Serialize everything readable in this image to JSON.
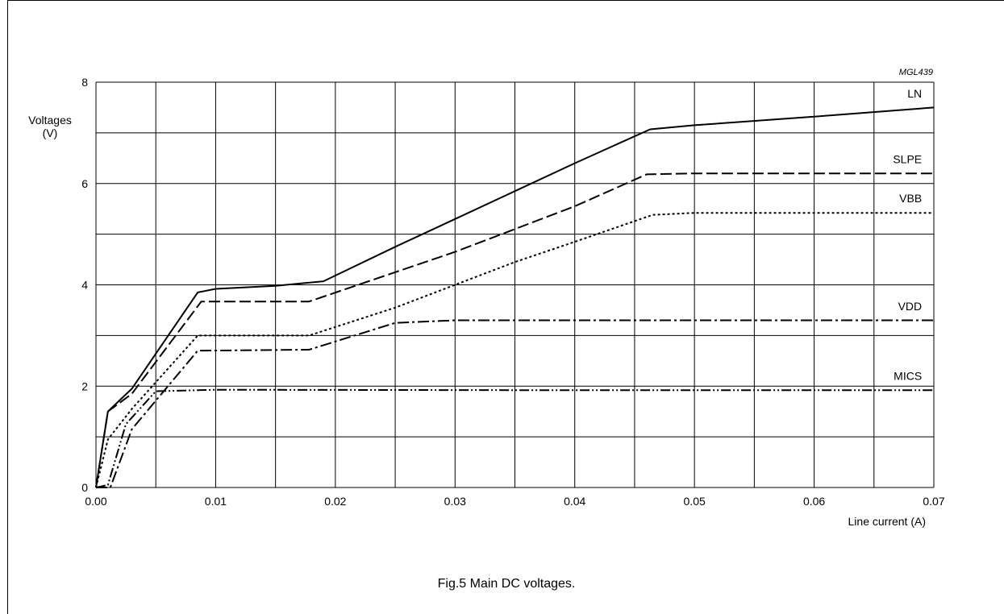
{
  "figure": {
    "code": "MGL439",
    "caption": "Fig.5  Main DC voltages."
  },
  "chart_data": {
    "type": "line",
    "title": "",
    "xlabel": "Line current (A)",
    "ylabel": [
      "Voltages",
      "(V)"
    ],
    "xlim": [
      0,
      0.07
    ],
    "ylim": [
      0,
      8
    ],
    "grid": true,
    "x_ticks": [
      0.0,
      0.01,
      0.02,
      0.03,
      0.04,
      0.05,
      0.06,
      0.07
    ],
    "x_tick_labels": [
      "0.00",
      "0.01",
      "0.02",
      "0.03",
      "0.04",
      "0.05",
      "0.06",
      "0.07"
    ],
    "x_minor_grid": [
      0.005,
      0.015,
      0.025,
      0.035,
      0.045,
      0.055,
      0.065
    ],
    "y_ticks": [
      0,
      2,
      4,
      6,
      8
    ],
    "y_tick_labels": [
      "0",
      "2",
      "4",
      "6",
      "8"
    ],
    "y_minor_grid": [
      1,
      3,
      5,
      7
    ],
    "series": [
      {
        "name": "LN",
        "dash": "solid",
        "points": [
          [
            0.0,
            0.0
          ],
          [
            0.001,
            1.5
          ],
          [
            0.003,
            1.95
          ],
          [
            0.0085,
            3.85
          ],
          [
            0.01,
            3.92
          ],
          [
            0.015,
            3.98
          ],
          [
            0.019,
            4.07
          ],
          [
            0.025,
            4.75
          ],
          [
            0.03,
            5.3
          ],
          [
            0.035,
            5.85
          ],
          [
            0.04,
            6.4
          ],
          [
            0.0463,
            7.07
          ],
          [
            0.05,
            7.15
          ],
          [
            0.06,
            7.32
          ],
          [
            0.07,
            7.5
          ]
        ],
        "label_at": [
          0.069,
          7.7
        ]
      },
      {
        "name": "SLPE",
        "dash": "long-dash",
        "points": [
          [
            0.0,
            0.0
          ],
          [
            0.001,
            1.5
          ],
          [
            0.003,
            1.85
          ],
          [
            0.0088,
            3.67
          ],
          [
            0.0178,
            3.67
          ],
          [
            0.025,
            4.25
          ],
          [
            0.03,
            4.65
          ],
          [
            0.035,
            5.1
          ],
          [
            0.04,
            5.55
          ],
          [
            0.046,
            6.18
          ],
          [
            0.05,
            6.2
          ],
          [
            0.07,
            6.2
          ]
        ],
        "label_at": [
          0.069,
          6.4
        ]
      },
      {
        "name": "VBB",
        "dash": "dotted",
        "points": [
          [
            0.0,
            0.0
          ],
          [
            0.001,
            0.95
          ],
          [
            0.003,
            1.55
          ],
          [
            0.0085,
            3.0
          ],
          [
            0.0178,
            3.0
          ],
          [
            0.025,
            3.55
          ],
          [
            0.03,
            4.0
          ],
          [
            0.035,
            4.45
          ],
          [
            0.04,
            4.85
          ],
          [
            0.0465,
            5.38
          ],
          [
            0.05,
            5.42
          ],
          [
            0.07,
            5.42
          ]
        ],
        "label_at": [
          0.069,
          5.63
        ]
      },
      {
        "name": "VDD",
        "dash": "dash-dot",
        "points": [
          [
            0.0,
            0.0
          ],
          [
            0.0012,
            0.0
          ],
          [
            0.003,
            1.15
          ],
          [
            0.0085,
            2.7
          ],
          [
            0.0178,
            2.72
          ],
          [
            0.025,
            3.25
          ],
          [
            0.03,
            3.3
          ],
          [
            0.07,
            3.3
          ]
        ],
        "label_at": [
          0.069,
          3.5
        ]
      },
      {
        "name": "MICS",
        "dash": "dash-dot-dot",
        "points": [
          [
            0.0,
            0.0
          ],
          [
            0.001,
            0.05
          ],
          [
            0.0025,
            1.25
          ],
          [
            0.005,
            1.9
          ],
          [
            0.01,
            1.93
          ],
          [
            0.04,
            1.92
          ],
          [
            0.07,
            1.92
          ]
        ],
        "label_at": [
          0.069,
          2.12
        ]
      }
    ]
  }
}
